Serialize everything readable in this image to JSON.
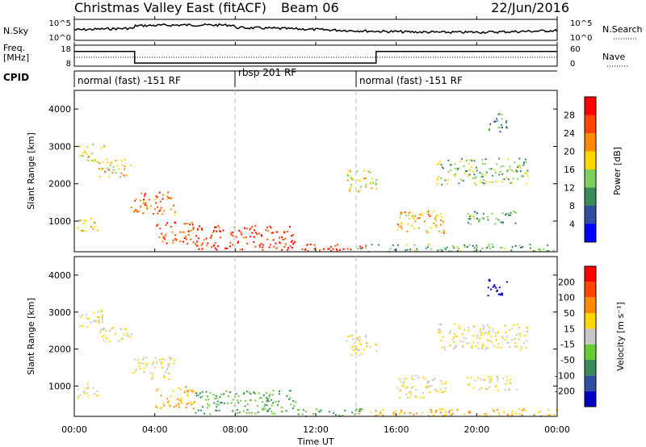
{
  "header": {
    "title": "Christmas Valley East (fitACF)",
    "beam": "Beam 06",
    "date": "22/Jun/2016"
  },
  "sky_panel": {
    "left_label": "N.Sky",
    "left_ticks": [
      "10^5",
      "10^0"
    ],
    "right_ticks": [
      "10^5",
      "10^0"
    ],
    "right_label": "N.Search"
  },
  "freq_panel": {
    "left_label_1": "Freq.",
    "left_label_2": "[MHz]",
    "left_ticks": [
      "18",
      "8"
    ],
    "right_ticks": [
      "60",
      "0"
    ],
    "right_label": "Nave"
  },
  "cpid": {
    "label": "CPID",
    "segments": [
      {
        "start_hr": 0,
        "end_hr": 8,
        "text": "normal (fast) -151 RF"
      },
      {
        "start_hr": 8,
        "end_hr": 14,
        "text": "rbsp 201 RF"
      },
      {
        "start_hr": 14,
        "end_hr": 24,
        "text": "normal (fast) -151 RF"
      }
    ]
  },
  "power_panel": {
    "ylabel": "Slant Range [km]",
    "yticks": [
      "4000",
      "3000",
      "2000",
      "1000"
    ],
    "colorbar_label": "Power [dB]",
    "colorbar_ticks": [
      "28",
      "24",
      "20",
      "16",
      "12",
      "8",
      "4"
    ],
    "colors": [
      "#0000ff",
      "#2f4f9f",
      "#3a8a5a",
      "#7fcf5f",
      "#ffd700",
      "#ff8c00",
      "#ff4500",
      "#ff0000"
    ]
  },
  "velocity_panel": {
    "ylabel": "Slant Range [km]",
    "yticks": [
      "4000",
      "3000",
      "2000",
      "1000"
    ],
    "colorbar_label": "Velocity [m s⁻¹]",
    "colorbar_ticks": [
      "200",
      "100",
      "50",
      "15",
      "-15",
      "-50",
      "-100",
      "-200"
    ],
    "colors": [
      "#0000c0",
      "#2f4f9f",
      "#3a8a5a",
      "#66cc33",
      "#c8c8c8",
      "#ffd700",
      "#ff8c00",
      "#ff4500",
      "#ff0000"
    ]
  },
  "xaxis": {
    "xlabel": "Time UT",
    "ticks": [
      "00:00",
      "04:00",
      "08:00",
      "12:00",
      "16:00",
      "20:00",
      "00:00"
    ]
  },
  "chart_data": {
    "type": "heatmap",
    "x_range_hours": [
      0,
      24
    ],
    "y_range_km": [
      180,
      4500
    ],
    "frequency_mhz": [
      {
        "start_hr": 0,
        "end_hr": 3,
        "value": 15
      },
      {
        "start_hr": 3,
        "end_hr": 15,
        "value": 9.5
      },
      {
        "start_hr": 15,
        "end_hr": 24,
        "value": 15
      }
    ],
    "echo_regions": [
      {
        "t0": 0.2,
        "t1": 1.5,
        "r0": 2600,
        "r1": 3100,
        "power_db": 18,
        "velocity": -15
      },
      {
        "t0": 1.2,
        "t1": 2.8,
        "r0": 2200,
        "r1": 2700,
        "power_db": 20,
        "velocity": -15
      },
      {
        "t0": 2.8,
        "t1": 5.0,
        "r0": 1200,
        "r1": 1800,
        "power_db": 24,
        "velocity": -15
      },
      {
        "t0": 0.1,
        "t1": 1.2,
        "r0": 700,
        "r1": 1100,
        "power_db": 16,
        "velocity": -15
      },
      {
        "t0": 4.0,
        "t1": 6.0,
        "r0": 400,
        "r1": 1000,
        "power_db": 26,
        "velocity": -50
      },
      {
        "t0": 6.0,
        "t1": 11.0,
        "r0": 250,
        "r1": 900,
        "power_db": 28,
        "velocity": 30
      },
      {
        "t0": 11.0,
        "t1": 14.5,
        "r0": 200,
        "r1": 400,
        "power_db": 28,
        "velocity": 30
      },
      {
        "t0": 13.5,
        "t1": 15.0,
        "r0": 1800,
        "r1": 2400,
        "power_db": 18,
        "velocity": -15
      },
      {
        "t0": 16.0,
        "t1": 18.5,
        "r0": 700,
        "r1": 1300,
        "power_db": 20,
        "velocity": -15
      },
      {
        "t0": 19.5,
        "t1": 22.0,
        "r0": 900,
        "r1": 1300,
        "power_db": 12,
        "velocity": -15
      },
      {
        "t0": 18.0,
        "t1": 22.5,
        "r0": 2000,
        "r1": 2700,
        "power_db": 14,
        "velocity": -15
      },
      {
        "t0": 20.5,
        "t1": 21.5,
        "r0": 3400,
        "r1": 3900,
        "power_db": 10,
        "velocity": 200
      },
      {
        "t0": 14.0,
        "t1": 24.0,
        "r0": 200,
        "r1": 400,
        "power_db": 12,
        "velocity": -50
      }
    ]
  }
}
